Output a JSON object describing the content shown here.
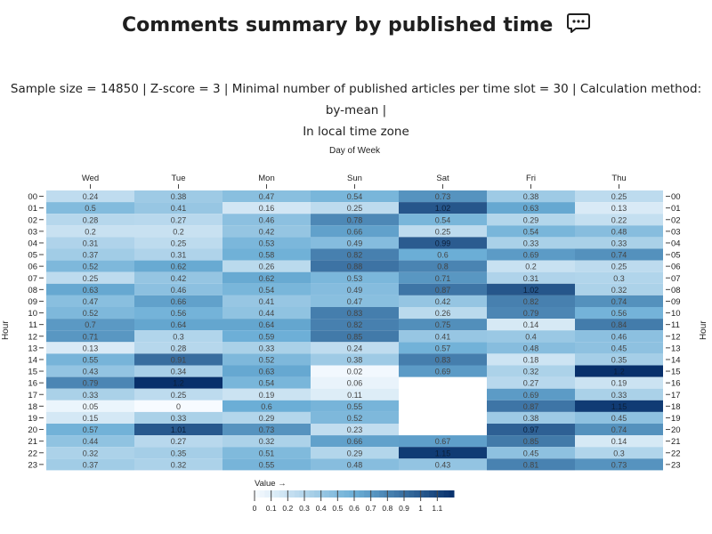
{
  "page": {
    "title": "Comments summary by published time",
    "title_icon": "comment-dots-icon",
    "subtitle_line1": "Sample size = 14850 | Z-score = 3 | Minimal number of published articles per time slot = 30 | Calculation method: by-mean |",
    "subtitle_line2": "In local time zone"
  },
  "chart_data": {
    "type": "heatmap",
    "xlabel": "Day of Week",
    "ylabel": "Hour",
    "x_categories": [
      "Wed",
      "Tue",
      "Mon",
      "Sun",
      "Sat",
      "Fri",
      "Thu"
    ],
    "y_categories": [
      "00",
      "01",
      "02",
      "03",
      "04",
      "05",
      "06",
      "07",
      "08",
      "09",
      "10",
      "11",
      "12",
      "13",
      "14",
      "15",
      "16",
      "17",
      "18",
      "19",
      "20",
      "21",
      "22",
      "23"
    ],
    "values": [
      [
        0.24,
        0.38,
        0.47,
        0.54,
        0.73,
        0.38,
        0.25
      ],
      [
        0.5,
        0.41,
        0.16,
        0.25,
        1.02,
        0.63,
        0.13
      ],
      [
        0.28,
        0.27,
        0.46,
        0.78,
        0.54,
        0.29,
        0.22
      ],
      [
        0.2,
        0.2,
        0.42,
        0.66,
        0.25,
        0.54,
        0.48
      ],
      [
        0.31,
        0.25,
        0.53,
        0.49,
        0.99,
        0.33,
        0.33
      ],
      [
        0.37,
        0.31,
        0.58,
        0.82,
        0.6,
        0.69,
        0.74
      ],
      [
        0.52,
        0.62,
        0.26,
        0.88,
        0.8,
        0.2,
        0.25
      ],
      [
        0.25,
        0.42,
        0.62,
        0.53,
        0.71,
        0.31,
        0.3
      ],
      [
        0.63,
        0.46,
        0.54,
        0.49,
        0.87,
        1.02,
        0.32
      ],
      [
        0.47,
        0.66,
        0.41,
        0.47,
        0.42,
        0.82,
        0.74
      ],
      [
        0.52,
        0.56,
        0.44,
        0.83,
        0.26,
        0.79,
        0.56
      ],
      [
        0.7,
        0.64,
        0.64,
        0.82,
        0.75,
        0.14,
        0.84
      ],
      [
        0.71,
        0.3,
        0.59,
        0.85,
        0.41,
        0.4,
        0.46
      ],
      [
        0.13,
        0.28,
        0.33,
        0.24,
        0.57,
        0.48,
        0.45
      ],
      [
        0.55,
        0.91,
        0.52,
        0.38,
        0.83,
        0.18,
        0.35
      ],
      [
        0.43,
        0.34,
        0.63,
        0.02,
        0.69,
        0.32,
        1.2
      ],
      [
        0.79,
        1.2,
        0.54,
        0.06,
        null,
        0.27,
        0.19
      ],
      [
        0.33,
        0.25,
        0.19,
        0.11,
        null,
        0.69,
        0.33
      ],
      [
        0.05,
        0,
        0.6,
        0.55,
        null,
        0.87,
        1.15
      ],
      [
        0.15,
        0.33,
        0.29,
        0.52,
        null,
        0.38,
        0.45
      ],
      [
        0.57,
        1.01,
        0.73,
        0.23,
        null,
        0.97,
        0.74
      ],
      [
        0.44,
        0.27,
        0.32,
        0.66,
        0.67,
        0.85,
        0.14
      ],
      [
        0.32,
        0.35,
        0.51,
        0.29,
        1.15,
        0.45,
        0.3
      ],
      [
        0.37,
        0.32,
        0.55,
        0.48,
        0.43,
        0.81,
        0.73
      ]
    ],
    "color_scale": {
      "min": 0,
      "max": 1.2,
      "low_color": "#f7fbff",
      "high_color": "#08306b",
      "name": "Blues"
    },
    "legend": {
      "title": "Value →",
      "ticks": [
        "0",
        "0.1",
        "0.2",
        "0.3",
        "0.4",
        "0.5",
        "0.6",
        "0.7",
        "0.8",
        "0.9",
        "1",
        "1.1"
      ],
      "placement": "bottom-left"
    },
    "grid": false
  }
}
